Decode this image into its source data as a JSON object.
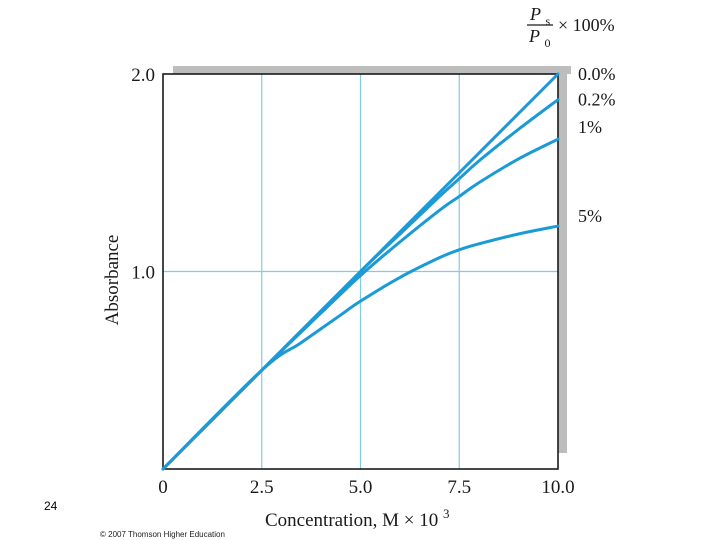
{
  "slide": {
    "page_number": "24",
    "copyright": "© 2007 Thomson Higher Education"
  },
  "chart_data": {
    "type": "line",
    "xlabel_text": "Concentration, M × 10",
    "xlabel_sup": "3",
    "ylabel": "Absorbance",
    "legend_title": {
      "numerator_main": "P",
      "numerator_sub": "s",
      "denominator_main": "P",
      "denominator_sub": "0",
      "suffix": "× 100%"
    },
    "xlim": [
      0,
      10
    ],
    "ylim": [
      0,
      2
    ],
    "x_ticks": [
      {
        "value": 0,
        "label": "0"
      },
      {
        "value": 2.5,
        "label": "2.5"
      },
      {
        "value": 5,
        "label": "5.0"
      },
      {
        "value": 7.5,
        "label": "7.5"
      },
      {
        "value": 10,
        "label": "10.0"
      }
    ],
    "y_ticks": [
      {
        "value": 1,
        "label": "1.0"
      },
      {
        "value": 2,
        "label": "2.0"
      }
    ],
    "grid": true,
    "colors": {
      "series": "#1a9ad6",
      "grid": "#7fcbe8",
      "axis": "#1a1a1a",
      "shadow": "#bdbdbd"
    },
    "series": [
      {
        "name": "0.0%",
        "x": [
          0,
          2.5,
          5,
          7.5,
          10
        ],
        "y": [
          0,
          0.5,
          1.0,
          1.5,
          2.0
        ]
      },
      {
        "name": "0.2%",
        "x": [
          0,
          2.5,
          5,
          6,
          7,
          7.5,
          8,
          9,
          10
        ],
        "y": [
          0,
          0.5,
          1.0,
          1.19,
          1.38,
          1.47,
          1.56,
          1.72,
          1.87
        ]
      },
      {
        "name": "1%",
        "x": [
          0,
          2.5,
          4,
          5,
          6,
          7,
          7.5,
          8,
          9,
          10
        ],
        "y": [
          0,
          0.5,
          0.79,
          0.98,
          1.15,
          1.31,
          1.38,
          1.45,
          1.57,
          1.67
        ]
      },
      {
        "name": "5%",
        "x": [
          0,
          2.5,
          3.5,
          4.5,
          5,
          6,
          7,
          7.5,
          8,
          9,
          10
        ],
        "y": [
          0,
          0.5,
          0.64,
          0.78,
          0.85,
          0.97,
          1.07,
          1.11,
          1.14,
          1.19,
          1.23
        ]
      }
    ]
  }
}
